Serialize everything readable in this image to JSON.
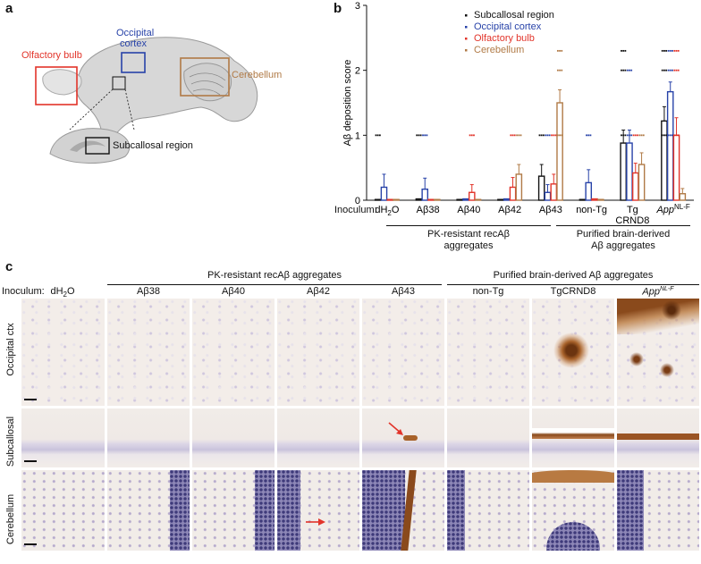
{
  "panels": {
    "a": "a",
    "b": "b",
    "c": "c"
  },
  "panel_a": {
    "olfactory": "Olfactory bulb",
    "occipital_line1": "Occipital",
    "occipital_line2": "cortex",
    "cerebellum": "Cerebellum",
    "subcallosal": "Subcallosal region",
    "colors": {
      "olfactory": "#e2342a",
      "occipital": "#2742a8",
      "cerebellum": "#b07a46",
      "subcallosal": "#111111",
      "brain": "#d7d7d7"
    }
  },
  "panel_b": {
    "inoculum_label": "Inoculum:",
    "group1": [
      "PK-resistant recAβ",
      "aggregates"
    ],
    "group2": [
      "Purified brain-derived",
      "Aβ aggregates"
    ]
  },
  "chart_data": {
    "type": "bar",
    "ylabel": "Aβ deposition score",
    "ylim": [
      0,
      3
    ],
    "yticks": [
      0,
      1,
      2,
      3
    ],
    "categories": [
      "dH2O",
      "Aβ38",
      "Aβ40",
      "Aβ42",
      "Aβ43",
      "non-Tg",
      "Tg CRND8",
      "App NL-F"
    ],
    "category_labels": [
      [
        "dH",
        "2",
        "O"
      ],
      [
        "Aβ38"
      ],
      [
        "Aβ40"
      ],
      [
        "Aβ42"
      ],
      [
        "Aβ43"
      ],
      [
        "non-Tg"
      ],
      [
        "Tg",
        "CRND8"
      ],
      [
        "App",
        "NL-F"
      ]
    ],
    "legend": {
      "placement": "top-right",
      "entries": [
        "Subcallosal region",
        "Occipital cortex",
        "Olfactory bulb",
        "Cerebellum"
      ]
    },
    "series": [
      {
        "name": "Subcallosal region",
        "color": "#111111",
        "values": [
          0.0,
          0.02,
          0.0,
          0.0,
          0.37,
          0.0,
          0.88,
          1.22
        ],
        "errors": [
          0,
          0,
          0,
          0,
          0.18,
          0,
          0.2,
          0.22
        ]
      },
      {
        "name": "Occipital cortex",
        "color": "#2742a8",
        "values": [
          0.2,
          0.17,
          0.02,
          0.02,
          0.12,
          0.27,
          0.88,
          1.67
        ],
        "errors": [
          0.2,
          0.17,
          0,
          0,
          0.12,
          0.2,
          0.2,
          0.15
        ]
      },
      {
        "name": "Olfactory bulb",
        "color": "#e2342a",
        "values": [
          0.0,
          0.0,
          0.12,
          0.2,
          0.25,
          0.02,
          0.42,
          1.0
        ],
        "errors": [
          0,
          0,
          0.12,
          0.15,
          0.15,
          0,
          0.15,
          0.27
        ]
      },
      {
        "name": "Cerebellum",
        "color": "#b07a46",
        "values": [
          0.0,
          0.0,
          0.0,
          0.4,
          1.5,
          0.0,
          0.55,
          0.1
        ],
        "errors": [
          0,
          0,
          0,
          0.15,
          0.2,
          0,
          0.18,
          0.08
        ]
      }
    ],
    "points": [
      {
        "series": 0,
        "cat": 0,
        "y": 1
      },
      {
        "series": 0,
        "cat": 1,
        "y": 1
      },
      {
        "series": 1,
        "cat": 1,
        "y": 1
      },
      {
        "series": 2,
        "cat": 2,
        "y": 1
      },
      {
        "series": 2,
        "cat": 3,
        "y": 1
      },
      {
        "series": 3,
        "cat": 3,
        "y": 1
      },
      {
        "series": 0,
        "cat": 4,
        "y": 1
      },
      {
        "series": 1,
        "cat": 4,
        "y": 1
      },
      {
        "series": 2,
        "cat": 4,
        "y": 1
      },
      {
        "series": 3,
        "cat": 4,
        "y": 1
      },
      {
        "series": 3,
        "cat": 4,
        "y": 2
      },
      {
        "series": 3,
        "cat": 4,
        "y": 2.3
      },
      {
        "series": 1,
        "cat": 5,
        "y": 1
      },
      {
        "series": 0,
        "cat": 6,
        "y": 1
      },
      {
        "series": 1,
        "cat": 6,
        "y": 1
      },
      {
        "series": 2,
        "cat": 6,
        "y": 1
      },
      {
        "series": 3,
        "cat": 6,
        "y": 1
      },
      {
        "series": 0,
        "cat": 6,
        "y": 2
      },
      {
        "series": 1,
        "cat": 6,
        "y": 2
      },
      {
        "series": 0,
        "cat": 6,
        "y": 2.3
      },
      {
        "series": 0,
        "cat": 7,
        "y": 1
      },
      {
        "series": 1,
        "cat": 7,
        "y": 1
      },
      {
        "series": 2,
        "cat": 7,
        "y": 1
      },
      {
        "series": 0,
        "cat": 7,
        "y": 2
      },
      {
        "series": 1,
        "cat": 7,
        "y": 2
      },
      {
        "series": 2,
        "cat": 7,
        "y": 2
      },
      {
        "series": 0,
        "cat": 7,
        "y": 2.3
      },
      {
        "series": 1,
        "cat": 7,
        "y": 2.3
      },
      {
        "series": 2,
        "cat": 7,
        "y": 2.3
      }
    ]
  },
  "panel_c": {
    "inoculum_label": "Inoculum:",
    "group1": "PK-resistant recAβ aggregates",
    "group2": "Purified brain-derived Aβ aggregates",
    "columns": [
      "dH2O",
      "Aβ38",
      "Aβ40",
      "Aβ42",
      "Aβ43",
      "non-Tg",
      "TgCRND8",
      "App NL-F"
    ],
    "col_dh2o": [
      "dH",
      "2",
      "O"
    ],
    "col_app": [
      "App",
      "NL-F"
    ],
    "rows": [
      "Occipital ctx",
      "Subcallosal",
      "Cerebellum"
    ],
    "stain_color": "#8a4a1c",
    "arrow_color": "#e2342a"
  }
}
